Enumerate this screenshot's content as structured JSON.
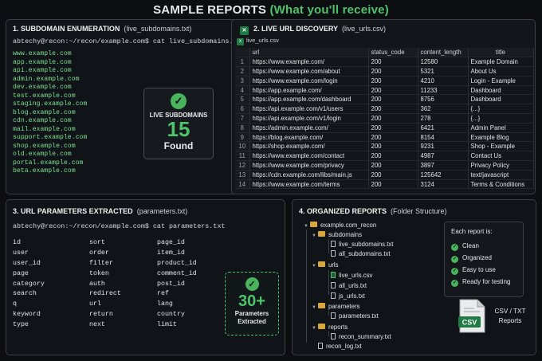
{
  "title": {
    "main": "SAMPLE REPORTS",
    "highlight": "(What you'll receive)"
  },
  "p1": {
    "header": "1.  SUBDOMAIN ENUMERATION",
    "file": "(live_subdomains.txt)",
    "command": "abtechy@recon:~/recon/example.com$ cat live_subdomains.txt",
    "subdomains": [
      "www.example.com",
      "app.example.com",
      "api.example.com",
      "admin.example.com",
      "dev.example.com",
      "test.example.com",
      "staging.example.com",
      "blog.example.com",
      "cdn.example.com",
      "mail.example.com",
      "support.example.com",
      "shop.example.com",
      "old.example.com",
      "portal.example.com",
      "beta.example.com"
    ],
    "box": {
      "label": "LIVE SUBDOMAINS",
      "count": "15",
      "found": "Found"
    }
  },
  "p2": {
    "header": "2.  LIVE URL DISCOVERY",
    "file": "(live_urls.csv)",
    "tab": "live_urls.csv",
    "columns": [
      "url",
      "status_code",
      "content_length",
      "title"
    ],
    "rows": [
      [
        "https://www.example.com/",
        "200",
        "12580",
        "Example Domain"
      ],
      [
        "https://www.example.com/about",
        "200",
        "5321",
        "About Us"
      ],
      [
        "https://www.example.com/login",
        "200",
        "4210",
        "Login - Example"
      ],
      [
        "https://app.example.com/",
        "200",
        "11233",
        "Dashboard"
      ],
      [
        "https://app.example.com/dashboard",
        "200",
        "8756",
        "Dashboard"
      ],
      [
        "https://api.example.com/v1/users",
        "200",
        "362",
        "{...}"
      ],
      [
        "https://api.example.com/v1/login",
        "200",
        "278",
        "{...}"
      ],
      [
        "https://admin.example.com/",
        "200",
        "6421",
        "Admin Panel"
      ],
      [
        "https://blog.example.com/",
        "200",
        "8154",
        "Example Blog"
      ],
      [
        "https://shop.example.com/",
        "200",
        "9231",
        "Shop - Example"
      ],
      [
        "https://www.example.com/contact",
        "200",
        "4987",
        "Contact Us"
      ],
      [
        "https://www.example.com/privacy",
        "200",
        "3897",
        "Privacy Policy"
      ],
      [
        "https://cdn.example.com/libs/main.js",
        "200",
        "125642",
        "text/javascript"
      ],
      [
        "https://www.example.com/terms",
        "200",
        "3124",
        "Terms & Conditions"
      ]
    ]
  },
  "p3": {
    "header": "3.  URL PARAMETERS EXTRACTED",
    "file": "(parameters.txt)",
    "command": "abtechy@recon:~/recon/example.com$ cat parameters.txt",
    "col1": [
      "id",
      "user",
      "user_id",
      "page",
      "category",
      "search",
      "q",
      "keyword",
      "type"
    ],
    "col2": [
      "sort",
      "order",
      "filter",
      "token",
      "auth",
      "redirect",
      "url",
      "return",
      "next"
    ],
    "col3": [
      "page_id",
      "item_id",
      "product_id",
      "comment_id",
      "post_id",
      "ref",
      "lang",
      "country",
      "limit"
    ],
    "box": {
      "count": "30+",
      "l1": "Parameters",
      "l2": "Extracted"
    }
  },
  "p4": {
    "header": "4.  ORGANIZED REPORTS",
    "file": "(Folder Structure)",
    "root": "example.com_recon",
    "f_sub": "subdomains",
    "sub1": "live_subdomains.txt",
    "sub2": "all_subdomains.txt",
    "f_urls": "urls",
    "u1": "live_urls.csv",
    "u2": "all_urls.txt",
    "u3": "js_urls.txt",
    "f_params": "parameters",
    "pa1": "parameters.txt",
    "f_reports": "reports",
    "r1": "recon_summary.txt",
    "log": "recon_log.txt",
    "each": {
      "title": "Each report is:",
      "items": [
        "Clean",
        "Organized",
        "Easy to use",
        "Ready for testing"
      ]
    },
    "csv": {
      "icon": "CSV",
      "l1": "CSV / TXT",
      "l2": "Reports"
    }
  }
}
